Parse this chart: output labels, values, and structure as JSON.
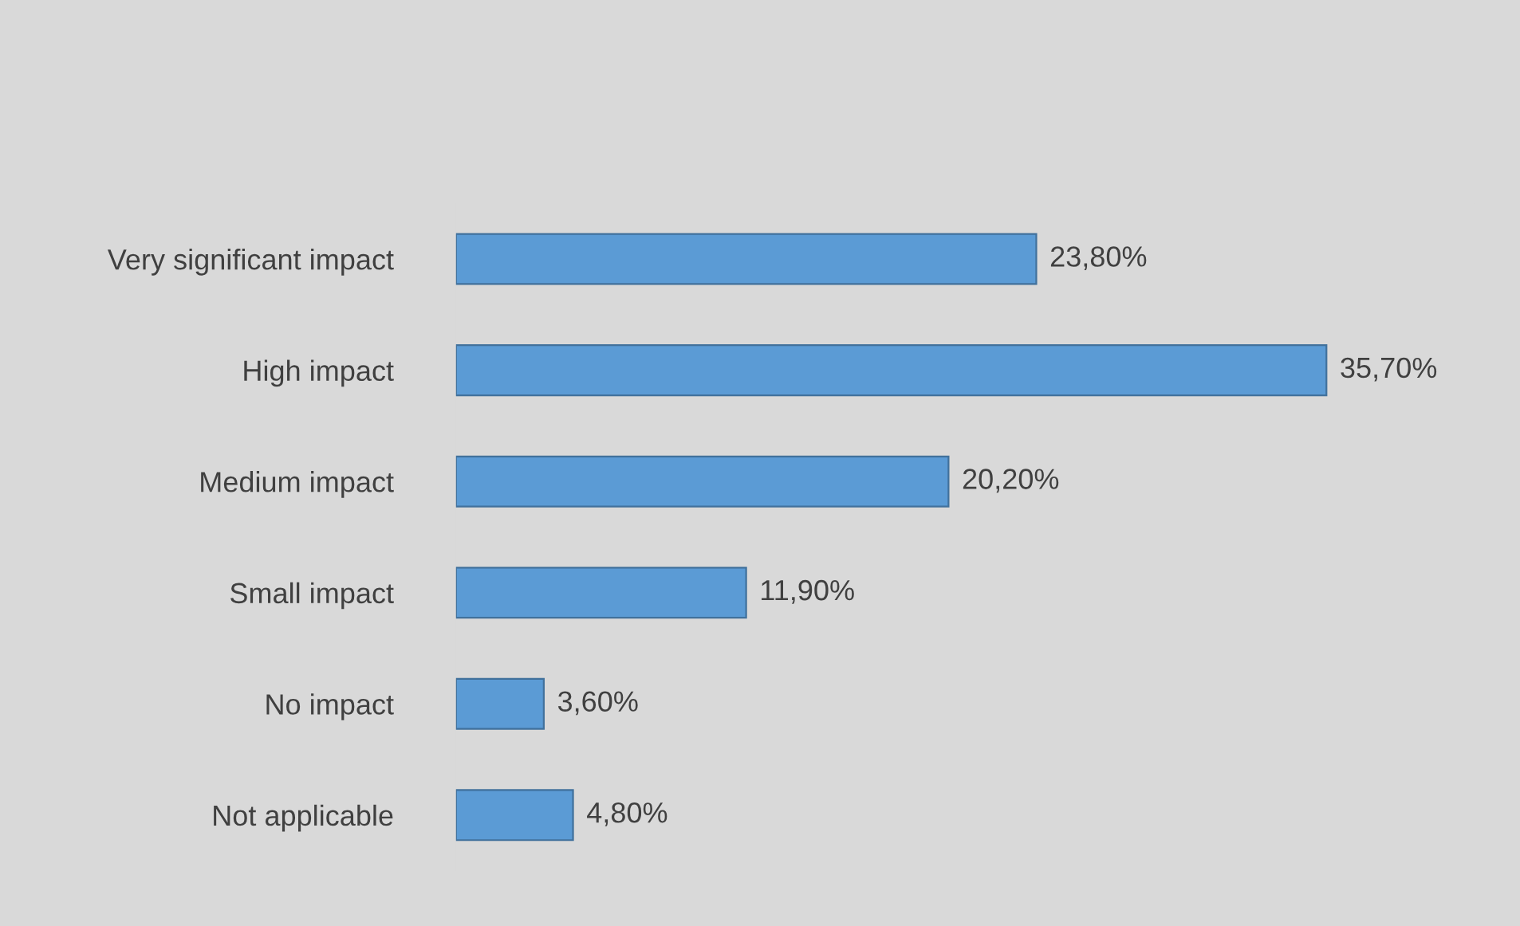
{
  "chart_data": {
    "type": "bar",
    "orientation": "horizontal",
    "categories": [
      "Very significant impact",
      "High impact",
      "Medium impact",
      "Small impact",
      "No impact",
      "Not applicable"
    ],
    "values": [
      23.8,
      35.7,
      20.2,
      11.9,
      3.6,
      4.8
    ],
    "value_labels": [
      "23,80%",
      "35,70%",
      "20,20%",
      "11,90%",
      "3,60%",
      "4,80%"
    ],
    "color": "#5b9bd5"
  }
}
